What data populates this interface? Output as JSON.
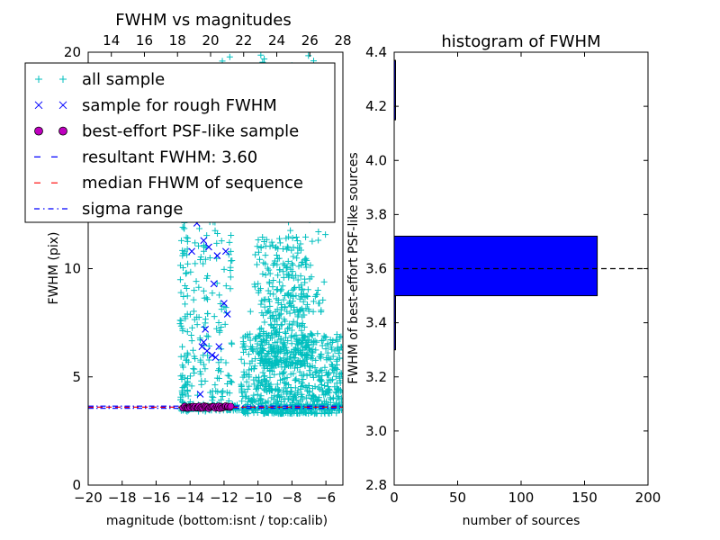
{
  "chart_data": [
    {
      "type": "scatter",
      "title": "FWHM vs magnitudes",
      "xlabel": "magnitude (bottom:isnt / top:calib)",
      "ylabel": "FWHM (pix)",
      "xlim": [
        -20,
        -5
      ],
      "ylim": [
        0,
        20
      ],
      "x_ticks": [
        -20,
        -18,
        -16,
        -14,
        -12,
        -10,
        -8,
        -6
      ],
      "x_tick_labels": [
        "−20",
        "−18",
        "−16",
        "−14",
        "−12",
        "−10",
        "−8",
        "−6"
      ],
      "y_ticks": [
        0,
        5,
        10,
        15,
        20
      ],
      "y_tick_labels": [
        "0",
        "5",
        "10",
        "",
        "20"
      ],
      "top_xlim": [
        12.6,
        28
      ],
      "top_ticks": [
        14,
        16,
        18,
        20,
        22,
        24,
        26,
        28
      ],
      "top_tick_labels": [
        "14",
        "16",
        "18",
        "20",
        "22",
        "24",
        "26",
        "28"
      ],
      "legend": {
        "position": "upper-left",
        "entries": [
          {
            "label": "all sample",
            "marker": "+",
            "color": "#00bfbf"
          },
          {
            "label": "sample for rough FWHM",
            "marker": "x",
            "color": "#0000ff"
          },
          {
            "label": "best-effort PSF-like sample",
            "marker": "o",
            "color": "#bf00bf"
          },
          {
            "label": "resultant FWHM: 3.60",
            "marker": "dashed",
            "color": "#0000ff"
          },
          {
            "label": "median FHWM of sequence",
            "marker": "dashed",
            "color": "#ff0000"
          },
          {
            "label": "sigma range",
            "marker": "dashdot",
            "color": "#0000ff"
          }
        ]
      },
      "series": [
        {
          "name": "all sample",
          "color": "#00bfbf",
          "regions": [
            {
              "x": [
                -14.6,
                -14.1
              ],
              "y": [
                3.4,
                18.5
              ],
              "n": 110
            },
            {
              "x": [
                -14.0,
                -11.5
              ],
              "y": [
                3.4,
                20
              ],
              "n": 220
            },
            {
              "x": [
                -11.0,
                -5.0
              ],
              "y": [
                3.3,
                7.0
              ],
              "n": 650
            },
            {
              "x": [
                -10.0,
                -7.0
              ],
              "y": [
                5.5,
                11.5
              ],
              "n": 320
            },
            {
              "x": [
                -10.5,
                -6.0
              ],
              "y": [
                8.0,
                20
              ],
              "n": 130
            },
            {
              "x": [
                -14.5,
                -5.0
              ],
              "y": [
                3.45,
                3.75
              ],
              "n": 160
            }
          ]
        },
        {
          "name": "sample for rough FWHM",
          "color": "#0000ff",
          "points": [
            [
              -13.9,
              10.8
            ],
            [
              -13.6,
              12.1
            ],
            [
              -13.2,
              11.3
            ],
            [
              -13.0,
              12.8
            ],
            [
              -13.0,
              13.1
            ],
            [
              -12.9,
              11.0
            ],
            [
              -12.4,
              10.6
            ],
            [
              -12.6,
              9.3
            ],
            [
              -12.0,
              8.4
            ],
            [
              -11.8,
              7.9
            ],
            [
              -11.9,
              10.8
            ],
            [
              -13.2,
              6.6
            ],
            [
              -13.3,
              6.4
            ],
            [
              -13.0,
              6.2
            ],
            [
              -12.7,
              6.0
            ],
            [
              -12.5,
              5.9
            ],
            [
              -12.3,
              6.4
            ],
            [
              -13.4,
              4.2
            ],
            [
              -13.1,
              7.2
            ]
          ]
        },
        {
          "name": "best-effort PSF-like sample",
          "color": "#bf00bf",
          "x_range": [
            -14.4,
            -11.6
          ],
          "y": 3.6,
          "n": 40
        }
      ],
      "lines": [
        {
          "name": "resultant FWHM: 3.60",
          "y": 3.6,
          "color": "#0000ff",
          "style": "dashed"
        },
        {
          "name": "median FHWM of sequence",
          "y": 3.6,
          "color": "#ff0000",
          "style": "dashed"
        },
        {
          "name": "sigma range",
          "y": 3.55,
          "color": "#0000ff",
          "style": "dashdot"
        },
        {
          "name": "sigma range",
          "y": 3.65,
          "color": "#0000ff",
          "style": "dashdot"
        }
      ]
    },
    {
      "type": "bar",
      "orientation": "horizontal",
      "title": "histogram of FWHM",
      "xlabel": "number of sources",
      "ylabel": "FWHM of best-effort PSF-like sources",
      "xlim": [
        0,
        200
      ],
      "ylim": [
        2.8,
        4.4
      ],
      "x_ticks": [
        0,
        50,
        100,
        150,
        200
      ],
      "x_tick_labels": [
        "0",
        "50",
        "100",
        "150",
        "200"
      ],
      "y_ticks": [
        2.8,
        3.0,
        3.2,
        3.4,
        3.6,
        3.8,
        4.0,
        4.2,
        4.4
      ],
      "y_tick_labels": [
        "2.8",
        "3.0",
        "3.2",
        "3.4",
        "3.6",
        "3.8",
        "4.0",
        "4.2",
        "4.4"
      ],
      "bars": [
        {
          "y0": 3.3,
          "y1": 3.5,
          "value": 1
        },
        {
          "y0": 3.5,
          "y1": 3.72,
          "value": 160
        },
        {
          "y0": 4.15,
          "y1": 4.37,
          "value": 1
        }
      ],
      "bar_color": "#0000ff",
      "reference_line": {
        "y": 3.6,
        "style": "dashed",
        "color": "#000000"
      }
    }
  ]
}
